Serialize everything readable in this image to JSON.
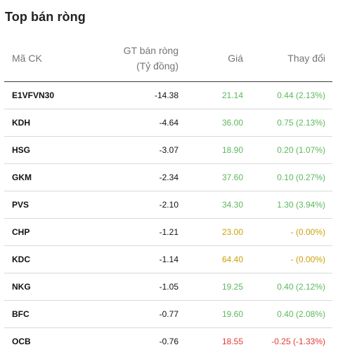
{
  "title": "Top bán ròng",
  "columns": {
    "symbol": "Mã CK",
    "net_value_line1": "GT bán ròng",
    "net_value_line2": "(Tỷ đồng)",
    "price": "Giá",
    "change": "Thay đổi"
  },
  "colors": {
    "up": "#5cb85c",
    "reference": "#c9a10a",
    "down": "#e53935"
  },
  "rows": [
    {
      "symbol": "E1VFVN30",
      "value": "-14.38",
      "price": "21.14",
      "change": "0.44 (2.13%)",
      "trend": "up"
    },
    {
      "symbol": "KDH",
      "value": "-4.64",
      "price": "36.00",
      "change": "0.75 (2.13%)",
      "trend": "up"
    },
    {
      "symbol": "HSG",
      "value": "-3.07",
      "price": "18.90",
      "change": "0.20 (1.07%)",
      "trend": "up"
    },
    {
      "symbol": "GKM",
      "value": "-2.34",
      "price": "37.60",
      "change": "0.10 (0.27%)",
      "trend": "up"
    },
    {
      "symbol": "PVS",
      "value": "-2.10",
      "price": "34.30",
      "change": "1.30 (3.94%)",
      "trend": "up"
    },
    {
      "symbol": "CHP",
      "value": "-1.21",
      "price": "23.00",
      "change": "- (0.00%)",
      "trend": "ref"
    },
    {
      "symbol": "KDC",
      "value": "-1.14",
      "price": "64.40",
      "change": "- (0.00%)",
      "trend": "ref"
    },
    {
      "symbol": "NKG",
      "value": "-1.05",
      "price": "19.25",
      "change": "0.40 (2.12%)",
      "trend": "up"
    },
    {
      "symbol": "BFC",
      "value": "-0.77",
      "price": "19.60",
      "change": "0.40 (2.08%)",
      "trend": "up"
    },
    {
      "symbol": "OCB",
      "value": "-0.76",
      "price": "18.55",
      "change": "-0.25 (-1.33%)",
      "trend": "down"
    }
  ]
}
